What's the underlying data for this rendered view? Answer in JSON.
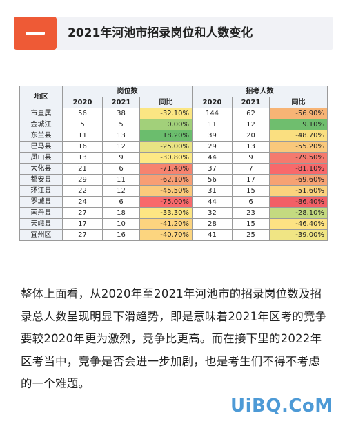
{
  "header": {
    "title": "2021年河池市招录岗位和人数变化"
  },
  "table": {
    "col_region": "地区",
    "group_positions": "岗位数",
    "group_applicants": "招考人数",
    "sub_2020": "2020",
    "sub_2021": "2021",
    "sub_ratio": "同比",
    "rows": [
      {
        "region": "市直属",
        "p2020": "56",
        "p2021": "38",
        "p_ratio": "-32.10%",
        "a2020": "144",
        "a2021": "62",
        "a_ratio": "-56.90%",
        "p_color": "#fbe683",
        "a_color": "#f7b475"
      },
      {
        "region": "金城江",
        "p2020": "5",
        "p2021": "5",
        "p_ratio": "0.00%",
        "a2020": "11",
        "a2021": "12",
        "a_ratio": "9.10%",
        "p_color": "#a2d07a",
        "a_color": "#6fbe6e"
      },
      {
        "region": "东兰县",
        "p2020": "11",
        "p2021": "13",
        "p_ratio": "18.20%",
        "a2020": "39",
        "a2021": "20",
        "a_ratio": "-48.70%",
        "p_color": "#6bbd6d",
        "a_color": "#fadf80"
      },
      {
        "region": "巴马县",
        "p2020": "16",
        "p2021": "12",
        "p_ratio": "-25.00%",
        "a2020": "29",
        "a2021": "13",
        "a_ratio": "-55.20%",
        "p_color": "#e9e383",
        "a_color": "#f9c87b"
      },
      {
        "region": "凤山县",
        "p2020": "13",
        "p2021": "9",
        "p_ratio": "-30.80%",
        "a2020": "44",
        "a2021": "9",
        "a_ratio": "-79.50%",
        "p_color": "#fde985",
        "a_color": "#f47a6e"
      },
      {
        "region": "大化县",
        "p2020": "21",
        "p2021": "6",
        "p_ratio": "-71.40%",
        "a2020": "37",
        "a2021": "7",
        "a_ratio": "-81.10%",
        "p_color": "#f6836f",
        "a_color": "#f8696b"
      },
      {
        "region": "都安县",
        "p2020": "29",
        "p2021": "11",
        "p_ratio": "-62.10%",
        "a2020": "56",
        "a2021": "17",
        "a_ratio": "-69.60%",
        "p_color": "#f89e74",
        "a_color": "#f6a273"
      },
      {
        "region": "环江县",
        "p2020": "22",
        "p2021": "12",
        "p_ratio": "-45.50%",
        "a2020": "31",
        "a2021": "15",
        "a_ratio": "-51.60%",
        "p_color": "#fbca7c",
        "a_color": "#fbd27e"
      },
      {
        "region": "罗城县",
        "p2020": "24",
        "p2021": "6",
        "p_ratio": "-75.00%",
        "a2020": "44",
        "a2021": "6",
        "a_ratio": "-86.40%",
        "p_color": "#f8696b",
        "a_color": "#f25f66"
      },
      {
        "region": "南丹县",
        "p2020": "27",
        "p2021": "18",
        "p_ratio": "-33.30%",
        "a2020": "32",
        "a2021": "23",
        "a_ratio": "-28.10%",
        "p_color": "#fde683",
        "a_color": "#c4da80"
      },
      {
        "region": "天峨县",
        "p2020": "17",
        "p2021": "10",
        "p_ratio": "-41.20%",
        "a2020": "28",
        "a2021": "15",
        "a_ratio": "-46.40%",
        "p_color": "#fcd47f",
        "a_color": "#fde283"
      },
      {
        "region": "宜州区",
        "p2020": "27",
        "p2021": "16",
        "p_ratio": "-40.70%",
        "a2020": "41",
        "a2021": "25",
        "a_ratio": "-39.00%",
        "p_color": "#fcd57f",
        "a_color": "#f0e584"
      }
    ]
  },
  "paragraph": "整体上面看，从2020年至2021年河池市的招录岗位数及招录总人数呈现明显下滑趋势，即是意味着2021年区考的竞争要较2020年更为激烈，竞争比更高。而在接下里的2022年区考当中，竞争是否会进一步加剧，也是考生们不得不考虑的一个难题。",
  "watermark": "UiBQ.CoM"
}
